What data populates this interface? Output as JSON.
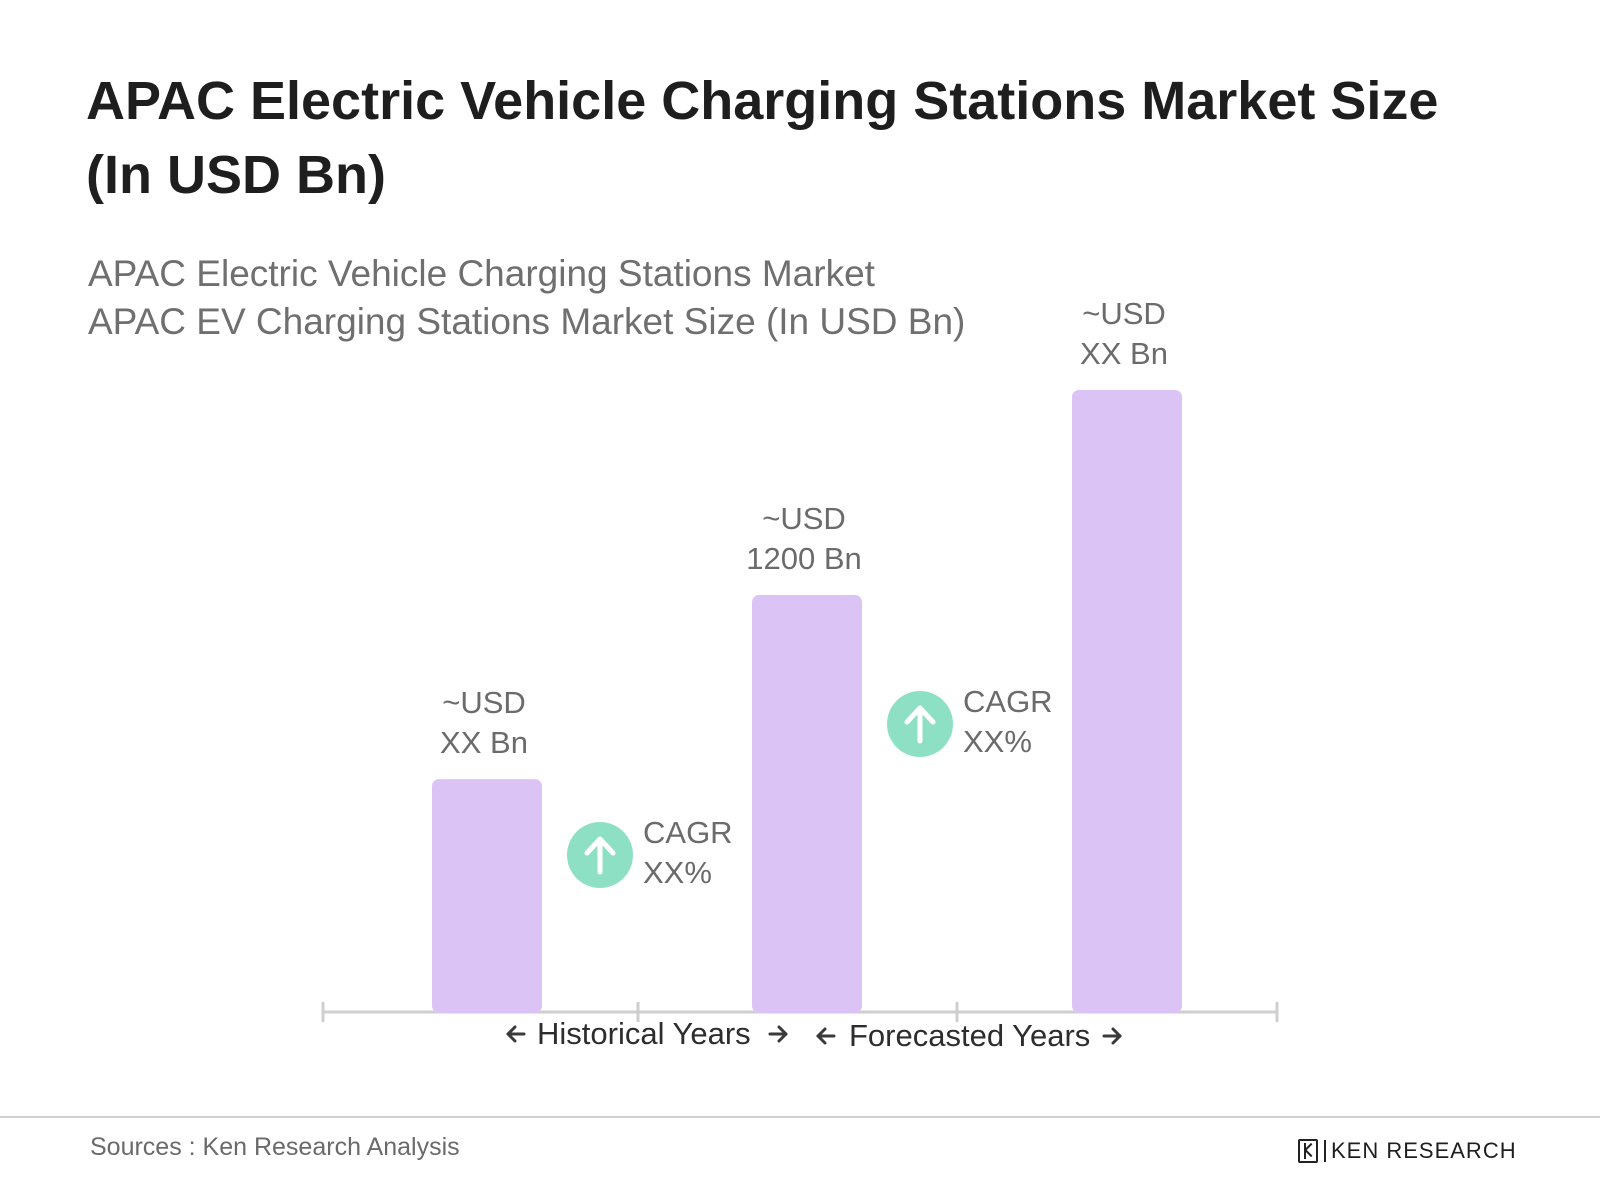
{
  "chart_data": {
    "type": "bar",
    "title": "APAC Electric Vehicle Charging Stations Market Size (In USD Bn)",
    "subtitle": [
      "APAC Electric Vehicle Charging Stations Market",
      "APAC EV Charging Stations Market Size (In USD Bn)"
    ],
    "categories": [
      "",
      "",
      ""
    ],
    "bars": [
      {
        "value": 670,
        "label_line1": "~USD",
        "label_line2": "XX Bn"
      },
      {
        "value": 1200,
        "label_line1": "~USD",
        "label_line2": "1200 Bn"
      },
      {
        "value": 1790,
        "label_line1": "~USD",
        "label_line2": "XX Bn"
      }
    ],
    "cagr": [
      {
        "line1": "CAGR",
        "line2": "XX%",
        "icon": "arrow-up-icon"
      },
      {
        "line1": "CAGR",
        "line2": "XX%",
        "icon": "arrow-up-icon"
      }
    ],
    "periods": [
      {
        "label": "Historical Years"
      },
      {
        "label": "Forecasted Years"
      }
    ],
    "ylim": [
      0,
      1790
    ],
    "grid": false,
    "colors": {
      "bar": "#dcc3f6",
      "cagr_circle": "#8ee0c5",
      "axis": "#cfcfcf"
    }
  },
  "footer": {
    "source": "Sources : Ken Research Analysis",
    "brand": "KEN RESEARCH"
  }
}
